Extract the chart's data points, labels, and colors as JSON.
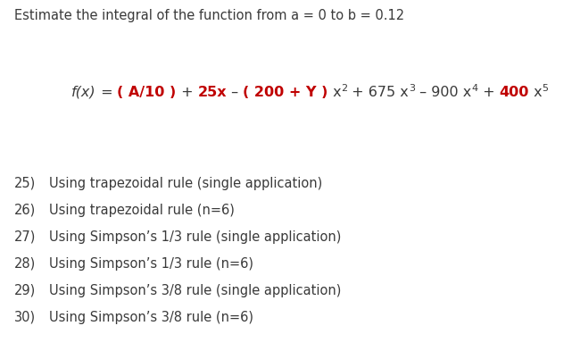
{
  "background_color": "#ffffff",
  "fig_width": 6.41,
  "fig_height": 3.93,
  "dpi": 100,
  "header_text": "Estimate the integral of the function from a = 0 to b = 0.12",
  "header_color": "#3a3a3a",
  "red_color": "#c00000",
  "dark_color": "#3a3a3a",
  "items": [
    {
      "num": "25)",
      "text": "Using trapezoidal rule (single application)"
    },
    {
      "num": "26)",
      "text": "Using trapezoidal rule (n=6)"
    },
    {
      "num": "27)",
      "text": "Using Simpson’s 1/3 rule (single application)"
    },
    {
      "num": "28)",
      "text": "Using Simpson’s 1/3 rule (n=6)"
    },
    {
      "num": "29)",
      "text": "Using Simpson’s 3/8 rule (single application)"
    },
    {
      "num": "30)",
      "text": "Using Simpson’s 3/8 rule (n=6)"
    }
  ]
}
